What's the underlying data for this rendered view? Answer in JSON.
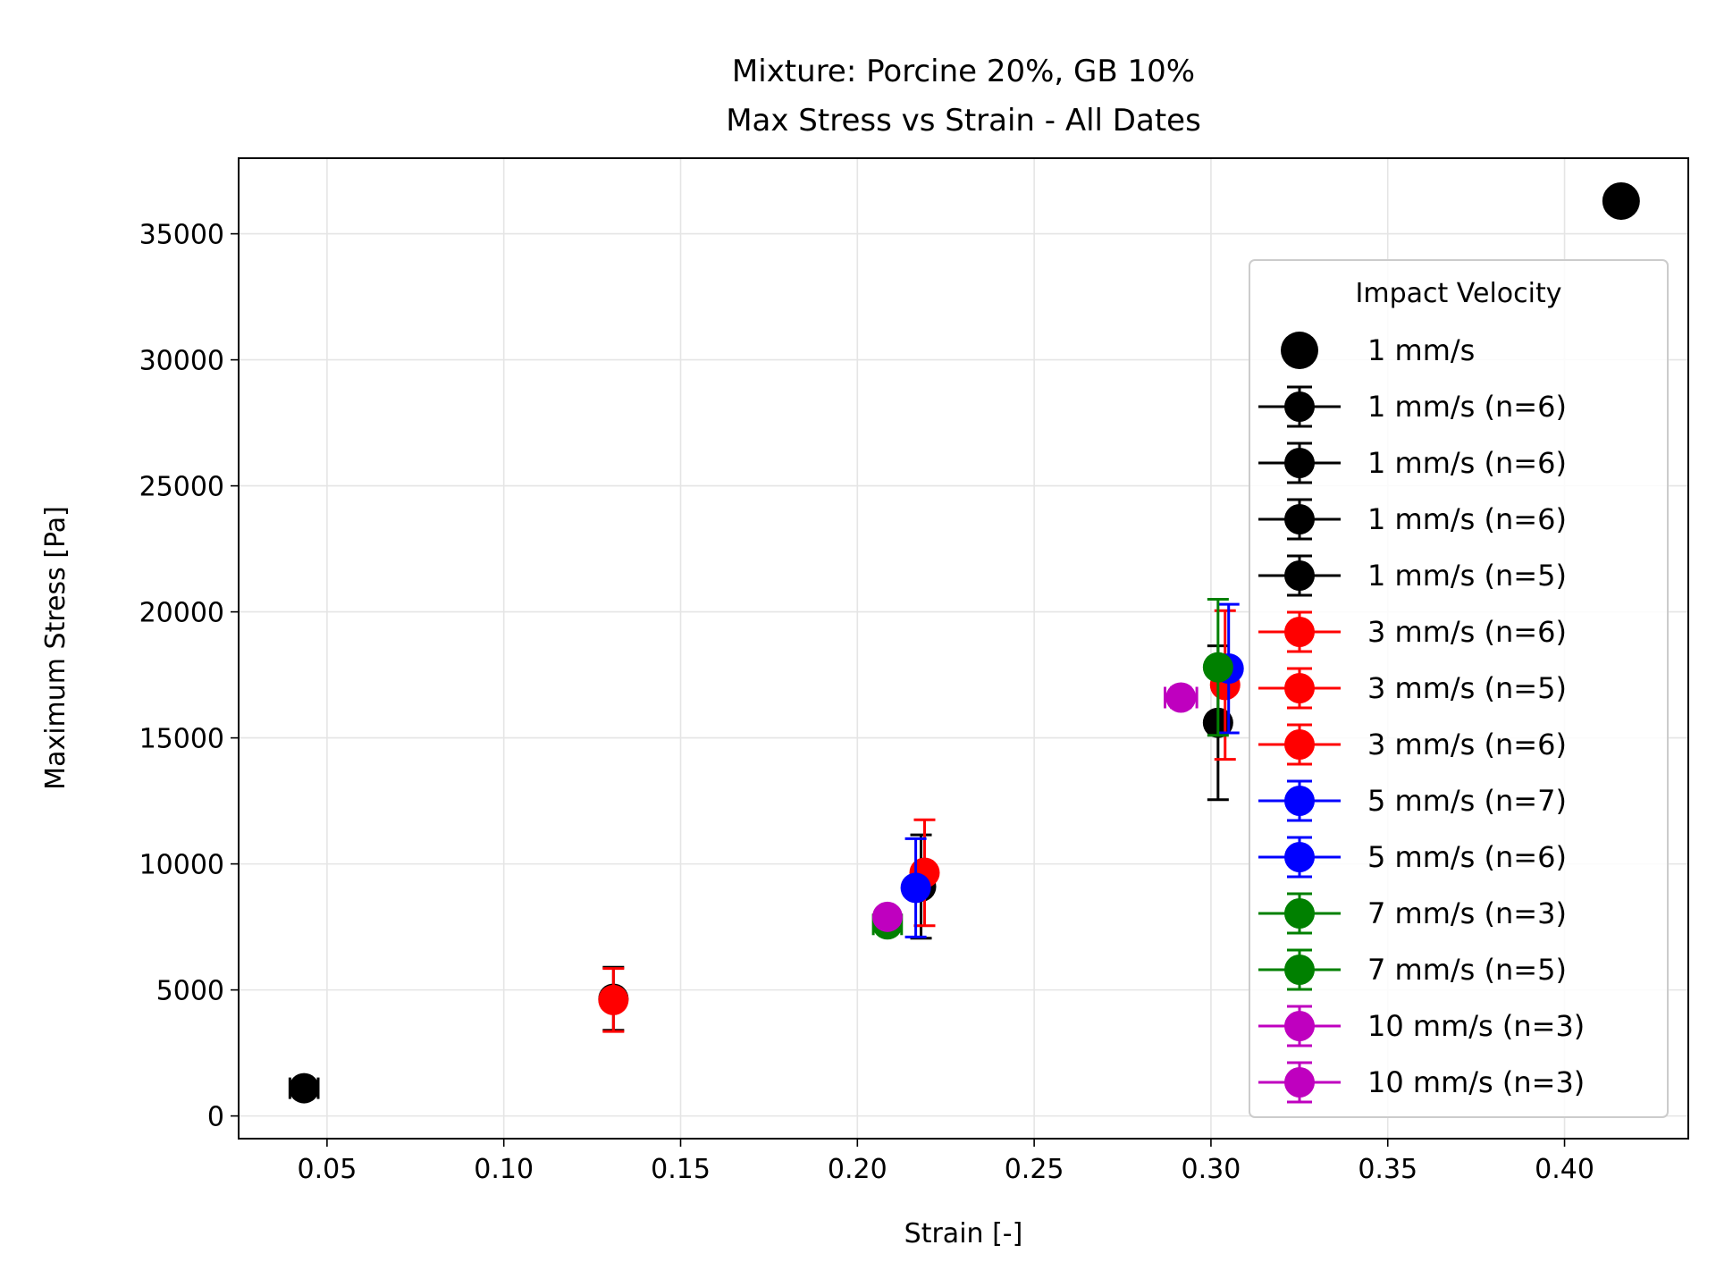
{
  "chart_data": {
    "type": "scatter",
    "title_lines": [
      "Mixture: Porcine 20%, GB 10%",
      "Max Stress vs Strain - All Dates"
    ],
    "xlabel": "Strain [-]",
    "ylabel": "Maximum Stress [Pa]",
    "xlim": [
      0.025,
      0.435
    ],
    "ylim": [
      -900,
      38000
    ],
    "xticks": [
      0.05,
      0.1,
      0.15,
      0.2,
      0.25,
      0.3,
      0.35,
      0.4
    ],
    "xtick_labels": [
      "0.05",
      "0.10",
      "0.15",
      "0.20",
      "0.25",
      "0.30",
      "0.35",
      "0.40"
    ],
    "yticks": [
      0,
      5000,
      10000,
      15000,
      20000,
      25000,
      30000,
      35000
    ],
    "ytick_labels": [
      "0",
      "5000",
      "10000",
      "15000",
      "20000",
      "25000",
      "30000",
      "35000"
    ],
    "grid": true,
    "legend": {
      "title": "Impact Velocity",
      "placement": "right"
    },
    "series": [
      {
        "name": "1 mm/s",
        "color": "#000000",
        "x": 0.416,
        "y": 36300,
        "errorbar": false,
        "marker": "large"
      },
      {
        "name": "1 mm/s (n=6)",
        "color": "#000000",
        "x": 0.0435,
        "y": 1100,
        "xerr": 0.004,
        "yerr": 300,
        "errorbar": true
      },
      {
        "name": "1 mm/s (n=6)",
        "color": "#000000",
        "x": 0.131,
        "y": 4650,
        "xerr": 0.0,
        "yerr": 1250,
        "errorbar": true
      },
      {
        "name": "1 mm/s (n=6)",
        "color": "#000000",
        "x": 0.218,
        "y": 9100,
        "xerr": 0.0,
        "yerr": 2050,
        "errorbar": true
      },
      {
        "name": "1 mm/s (n=5)",
        "color": "#000000",
        "x": 0.302,
        "y": 15600,
        "xerr": 0.0,
        "yerr": 3050,
        "errorbar": true
      },
      {
        "name": "3 mm/s (n=6)",
        "color": "#ff0000",
        "x": 0.131,
        "y": 4600,
        "xerr": 0.0,
        "yerr": 1250,
        "errorbar": true
      },
      {
        "name": "3 mm/s (n=5)",
        "color": "#ff0000",
        "x": 0.219,
        "y": 9650,
        "xerr": 0.0,
        "yerr": 2100,
        "errorbar": true
      },
      {
        "name": "3 mm/s (n=6)",
        "color": "#ff0000",
        "x": 0.304,
        "y": 17100,
        "xerr": 0.0,
        "yerr": 2950,
        "errorbar": true
      },
      {
        "name": "5 mm/s (n=7)",
        "color": "#0000ff",
        "x": 0.2165,
        "y": 9050,
        "xerr": 0.0,
        "yerr": 1950,
        "errorbar": true
      },
      {
        "name": "5 mm/s (n=6)",
        "color": "#0000ff",
        "x": 0.305,
        "y": 17750,
        "xerr": 0.0,
        "yerr": 2550,
        "errorbar": true
      },
      {
        "name": "7 mm/s (n=3)",
        "color": "#008000",
        "x": 0.2085,
        "y": 7600,
        "xerr": 0.004,
        "yerr": 200,
        "errorbar": true
      },
      {
        "name": "7 mm/s (n=5)",
        "color": "#008000",
        "x": 0.302,
        "y": 17800,
        "xerr": 0.0,
        "yerr": 2700,
        "errorbar": true
      },
      {
        "name": "10 mm/s (n=3)",
        "color": "#bf00bf",
        "x": 0.2085,
        "y": 7900,
        "xerr": 0.0,
        "yerr": 150,
        "errorbar": true
      },
      {
        "name": "10 mm/s (n=3)",
        "color": "#bf00bf",
        "x": 0.2915,
        "y": 16600,
        "xerr": 0.0045,
        "yerr": 400,
        "errorbar": true
      }
    ]
  }
}
